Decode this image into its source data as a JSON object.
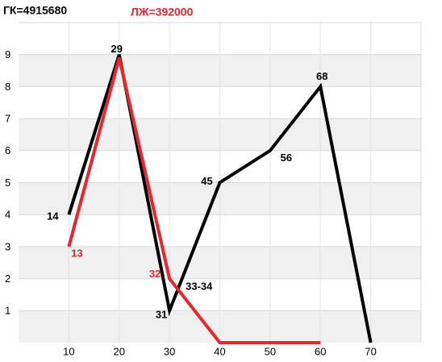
{
  "chart_data": {
    "type": "line",
    "series": [
      {
        "name": "ГК=4915680",
        "color": "#000000",
        "values": [
          4,
          9,
          1,
          5,
          6,
          8,
          0
        ],
        "point_labels": [
          "14",
          "29",
          "31",
          "45",
          "56",
          "68",
          null
        ]
      },
      {
        "name": "ЛЖ=392000",
        "color": "#e8262b",
        "values": [
          3,
          8.9,
          2,
          0,
          0,
          0,
          null
        ],
        "point_labels": [
          "13",
          null,
          "32",
          null,
          null,
          null,
          null
        ]
      }
    ],
    "x": [
      10,
      20,
      30,
      40,
      50,
      60,
      70
    ],
    "annotations": [
      {
        "text": "33-34"
      }
    ],
    "xlim": [
      0,
      80
    ],
    "xticks": [
      10,
      20,
      30,
      40,
      50,
      60,
      70
    ],
    "ylim": [
      0,
      10
    ],
    "yticks": [
      1,
      2,
      3,
      4,
      5,
      6,
      7,
      8,
      9
    ],
    "grid": true
  }
}
